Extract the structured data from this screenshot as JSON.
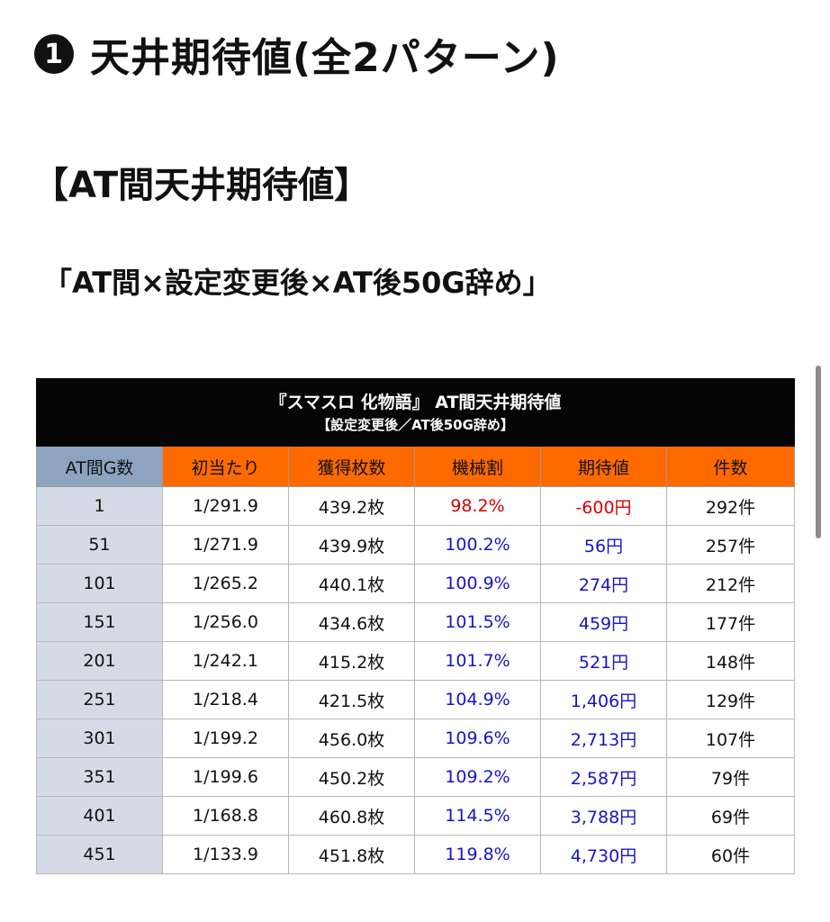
{
  "headings": {
    "h1_num": "1",
    "h1_text": "天井期待値(全2パターン)",
    "h2": "【AT間天井期待値】",
    "h3": "「AT間×設定変更後×AT後50G辞め」"
  },
  "table": {
    "caption_main": "『スマスロ 化物語』 AT間天井期待値",
    "caption_sub": "【設定変更後／AT後50G辞め】",
    "columns": [
      "AT間G数",
      "初当たり",
      "獲得枚数",
      "機械割",
      "期待値",
      "件数"
    ],
    "rows": [
      [
        "1",
        "1/291.9",
        "439.2枚",
        "98.2%",
        "-600円",
        "292件"
      ],
      [
        "51",
        "1/271.9",
        "439.9枚",
        "100.2%",
        "56円",
        "257件"
      ],
      [
        "101",
        "1/265.2",
        "440.1枚",
        "100.9%",
        "274円",
        "212件"
      ],
      [
        "151",
        "1/256.0",
        "434.6枚",
        "101.5%",
        "459円",
        "177件"
      ],
      [
        "201",
        "1/242.1",
        "415.2枚",
        "101.7%",
        "521円",
        "148件"
      ],
      [
        "251",
        "1/218.4",
        "421.5枚",
        "104.9%",
        "1,406円",
        "129件"
      ],
      [
        "301",
        "1/199.2",
        "456.0枚",
        "109.6%",
        "2,713円",
        "107件"
      ],
      [
        "351",
        "1/199.6",
        "450.2枚",
        "109.2%",
        "2,587円",
        "79件"
      ],
      [
        "401",
        "1/168.8",
        "460.8枚",
        "114.5%",
        "3,788円",
        "69件"
      ],
      [
        "451",
        "1/133.9",
        "451.8枚",
        "119.8%",
        "4,730円",
        "60件"
      ]
    ]
  },
  "colors": {
    "header_orange": "#ff6a00",
    "header_gray": "#8da3c0",
    "negative": "#d60000",
    "positive": "#1515c8"
  }
}
